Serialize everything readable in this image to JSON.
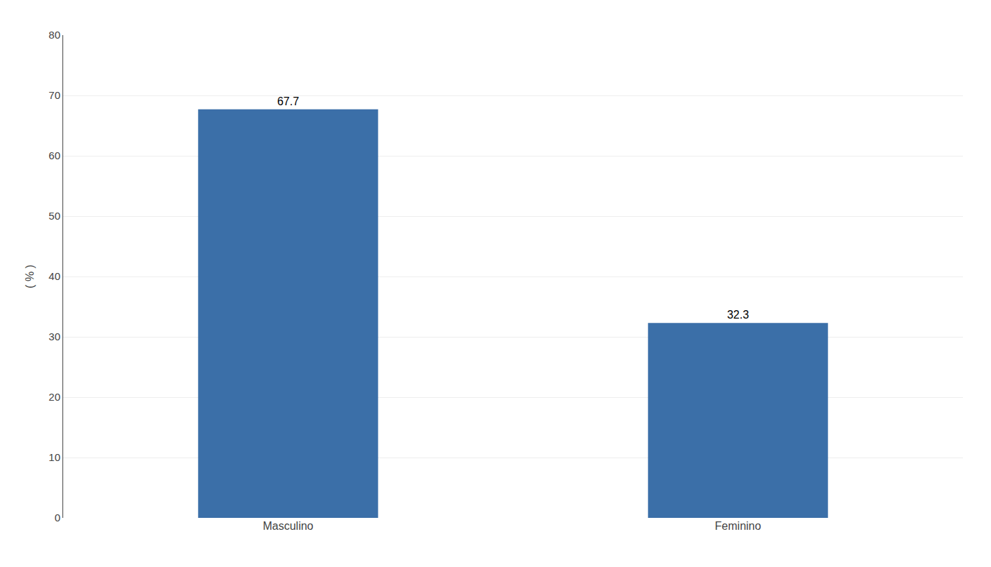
{
  "chart_data": {
    "type": "bar",
    "categories": [
      "Masculino",
      "Feminino"
    ],
    "values": [
      67.7,
      32.3
    ],
    "color": "#3B6FA8",
    "ylabel": "( % )",
    "ylim": [
      0,
      80
    ],
    "yticks": [
      0,
      10,
      20,
      30,
      40,
      50,
      60,
      70,
      80
    ],
    "grid": true,
    "data_labels": true
  }
}
